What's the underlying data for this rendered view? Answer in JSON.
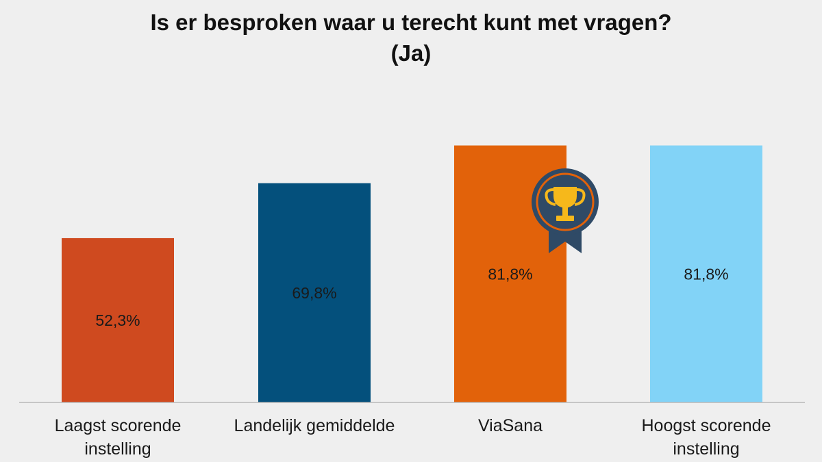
{
  "chart_data": {
    "type": "bar",
    "title": "Is er besproken waar u terecht kunt met vragen?",
    "subtitle": "(Ja)",
    "categories": [
      [
        "Laagst scorende",
        "instelling"
      ],
      [
        "Landelijk gemiddelde"
      ],
      [
        "ViaSana"
      ],
      [
        "Hoogst scorende",
        "instelling"
      ]
    ],
    "values": [
      52.3,
      69.8,
      81.8,
      81.8
    ],
    "value_labels": [
      "52,3%",
      "69,8%",
      "81,8%",
      "81,8%"
    ],
    "colors": [
      "#cf4a1f",
      "#04507c",
      "#e2620a",
      "#82d3f7"
    ],
    "ylim": [
      0,
      100
    ],
    "grid": false,
    "badge": {
      "icon": "trophy-icon",
      "on_category": "ViaSana"
    }
  }
}
